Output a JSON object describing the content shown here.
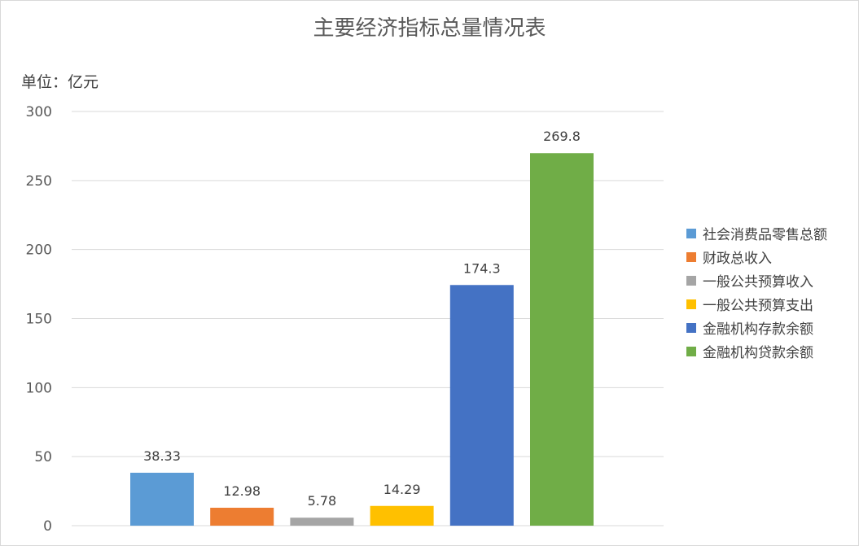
{
  "chart_data": {
    "type": "bar",
    "title": "主要经济指标总量情况表",
    "unit_label": "单位：亿元",
    "xlabel": "",
    "ylabel": "",
    "ylim": [
      0,
      300
    ],
    "yticks": [
      0,
      50,
      100,
      150,
      200,
      250,
      300
    ],
    "grid": true,
    "legend_position": "right",
    "categories": [
      "社会消费品零售总额",
      "财政总收入",
      "一般公共预算收入",
      "一般公共预算支出",
      "金融机构存款余额",
      "金融机构贷款余额"
    ],
    "values": [
      38.33,
      12.98,
      5.78,
      14.29,
      174.3,
      269.8
    ],
    "value_labels": [
      "38.33",
      "12.98",
      "5.78",
      "14.29",
      "174.3",
      "269.8"
    ],
    "colors": [
      "#5b9bd5",
      "#ed7d31",
      "#a5a5a5",
      "#ffc000",
      "#4472c4",
      "#70ad47"
    ]
  }
}
